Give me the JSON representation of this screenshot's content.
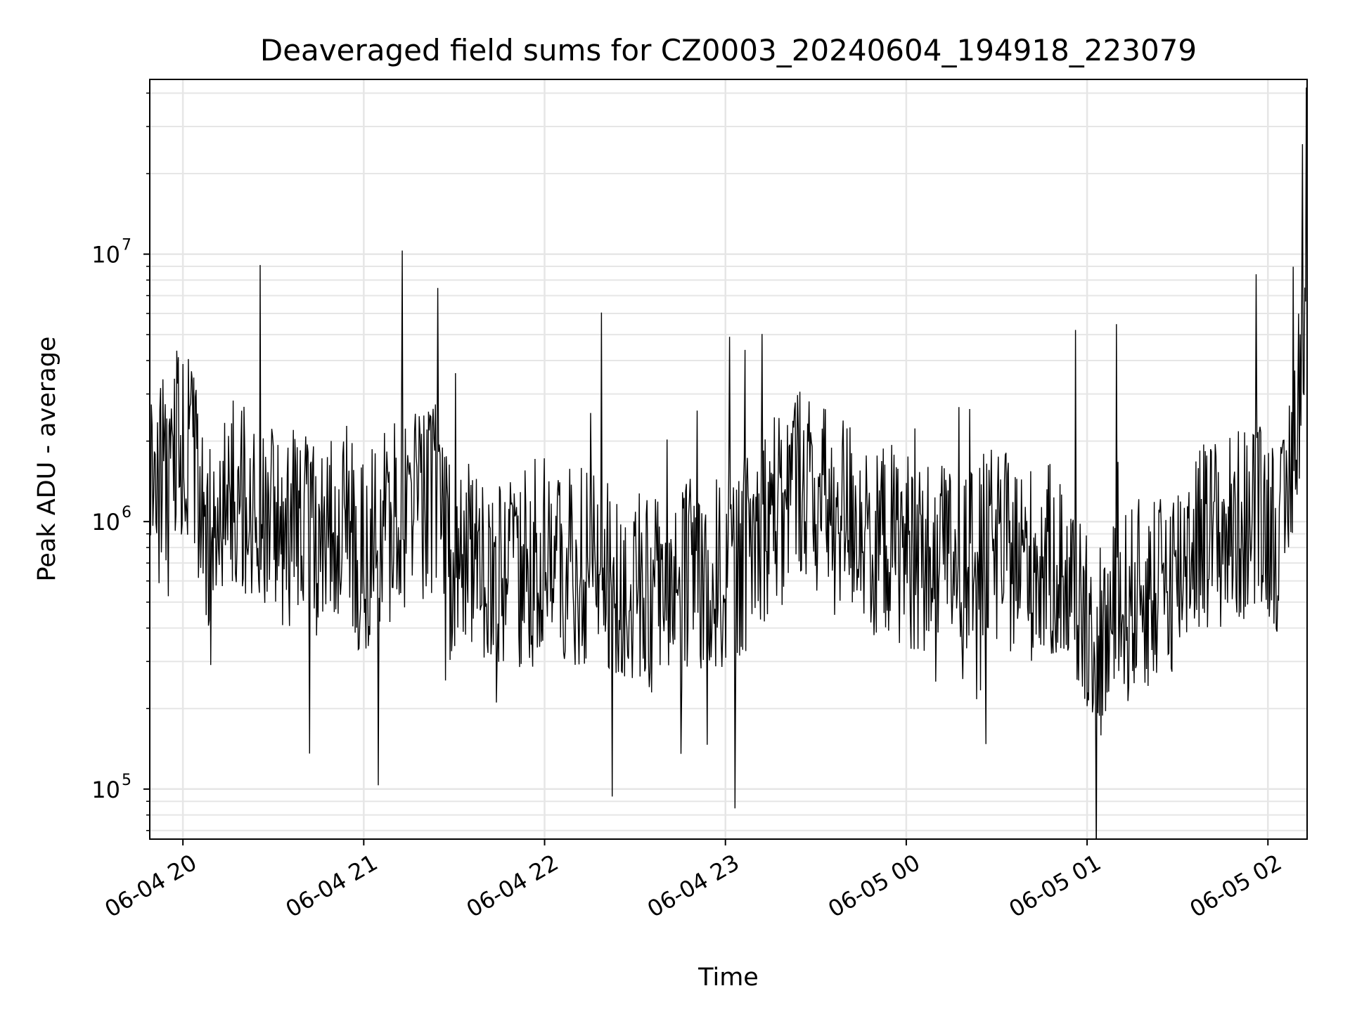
{
  "chart_data": {
    "type": "line",
    "title": "Deaveraged field sums for CZ0003_20240604_194918_223079",
    "xlabel": "Time",
    "ylabel": "Peak ADU - average",
    "y_scale": "log",
    "ylim": [
      65000,
      45000000
    ],
    "xlim": [
      "2024-06-04 19:49",
      "2024-06-05 02:13"
    ],
    "grid": true,
    "line_color": "#000000",
    "x_ticks": [
      "06-04 20",
      "06-04 21",
      "06-04 22",
      "06-04 23",
      "06-05 00",
      "06-05 01",
      "06-05 02"
    ],
    "y_ticks": [
      {
        "base": "10",
        "exp": "5",
        "value": 100000
      },
      {
        "base": "10",
        "exp": "6",
        "value": 1000000
      },
      {
        "base": "10",
        "exp": "7",
        "value": 10000000
      }
    ],
    "series": [
      {
        "x": [
          "2024-06-04 19:49",
          "2024-06-04 19:55",
          "2024-06-04 20:00",
          "2024-06-04 20:05",
          "2024-06-04 20:08",
          "2024-06-04 20:15",
          "2024-06-04 20:23",
          "2024-06-04 20:30",
          "2024-06-04 20:40",
          "2024-06-04 20:47",
          "2024-06-04 20:55",
          "2024-06-04 20:58",
          "2024-06-04 21:05",
          "2024-06-04 21:15",
          "2024-06-04 21:25",
          "2024-06-04 21:28",
          "2024-06-04 21:35",
          "2024-06-04 21:45",
          "2024-06-04 21:55",
          "2024-06-04 22:05",
          "2024-06-04 22:13",
          "2024-06-04 22:22",
          "2024-06-04 22:25",
          "2024-06-04 22:30",
          "2024-06-04 22:42",
          "2024-06-04 22:50",
          "2024-06-04 22:55",
          "2024-06-04 23:05",
          "2024-06-04 23:15",
          "2024-06-04 23:25",
          "2024-06-04 23:30",
          "2024-06-04 23:40",
          "2024-06-04 23:50",
          "2024-06-05 00:00",
          "2024-06-05 00:10",
          "2024-06-05 00:20",
          "2024-06-05 00:30",
          "2024-06-05 00:40",
          "2024-06-05 00:50",
          "2024-06-05 01:00",
          "2024-06-05 01:05",
          "2024-06-05 01:10",
          "2024-06-05 01:20",
          "2024-06-05 01:30",
          "2024-06-05 01:35",
          "2024-06-05 01:45",
          "2024-06-05 01:55",
          "2024-06-05 02:00",
          "2024-06-05 02:05",
          "2024-06-05 02:12"
        ],
        "y": [
          1200000,
          1600000,
          2000000,
          1800000,
          900000,
          1500000,
          1100000,
          1000000,
          900000,
          800000,
          1200000,
          700000,
          900000,
          1100000,
          1300000,
          700000,
          800000,
          600000,
          700000,
          650000,
          700000,
          600000,
          500000,
          550000,
          500000,
          650000,
          600000,
          700000,
          1100000,
          1500000,
          1200000,
          1100000,
          900000,
          800000,
          700000,
          750000,
          800000,
          700000,
          700000,
          450000,
          350000,
          450000,
          550000,
          650000,
          900000,
          900000,
          1000000,
          1000000,
          850000,
          5000000
        ]
      }
    ]
  }
}
